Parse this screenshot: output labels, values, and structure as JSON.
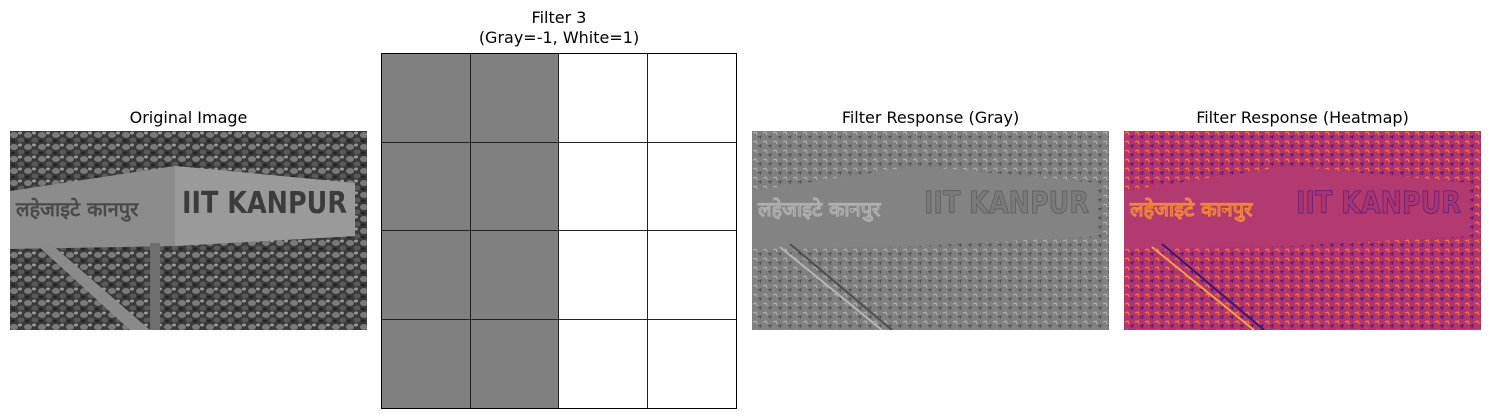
{
  "panels": {
    "original": {
      "title": "Original Image",
      "sign_left": "लहेजाइटे कानपुर",
      "sign_right": "IIT KANPUR"
    },
    "filter": {
      "title_line1": "Filter 3",
      "title_line2": "(Gray=-1, White=1)"
    },
    "gray_response": {
      "title": "Filter Response (Gray)",
      "sign_left": "लहेजाइटे कानपुर",
      "sign_right": "IIT KANPUR"
    },
    "heatmap_response": {
      "title": "Filter Response (Heatmap)",
      "sign_left": "लहेजाइटे कानपुर",
      "sign_right": "IIT KANPUR"
    }
  },
  "kernel": {
    "rows": 4,
    "cols": 4,
    "values": [
      [
        -1,
        -1,
        1,
        1
      ],
      [
        -1,
        -1,
        1,
        1
      ],
      [
        -1,
        -1,
        1,
        1
      ],
      [
        -1,
        -1,
        1,
        1
      ]
    ],
    "colors": {
      "neg": "#808080",
      "pos": "#ffffff"
    }
  }
}
